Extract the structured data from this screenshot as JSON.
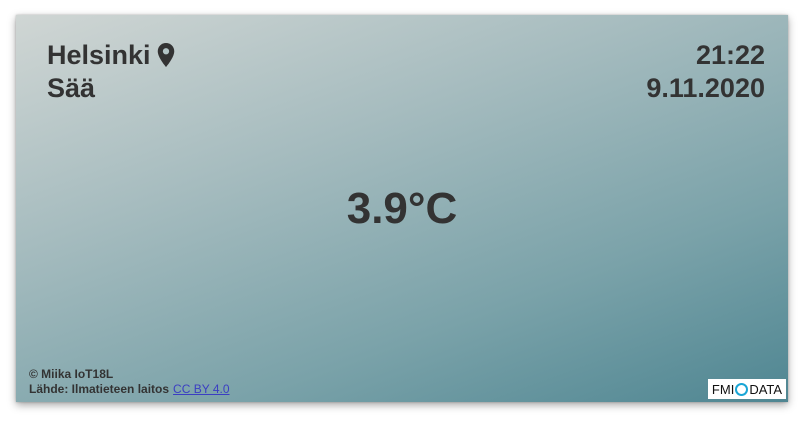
{
  "header": {
    "city": "Helsinki",
    "subtitle": "Sää",
    "location_icon": "map-pin-icon"
  },
  "clock": {
    "time": "21:22",
    "date": "9.11.2020"
  },
  "weather": {
    "temperature": "3.9°C"
  },
  "footer": {
    "copyright": "© Miika IoT18L",
    "source_label": "Lähde: Ilmatieteen laitos",
    "license_link": "CC BY 4.0"
  },
  "logo": {
    "left_text": "FMI",
    "right_text": "DATA",
    "ring_color": "#1aa6d6"
  },
  "colors": {
    "text": "#333333",
    "link": "#3b3ec2"
  }
}
